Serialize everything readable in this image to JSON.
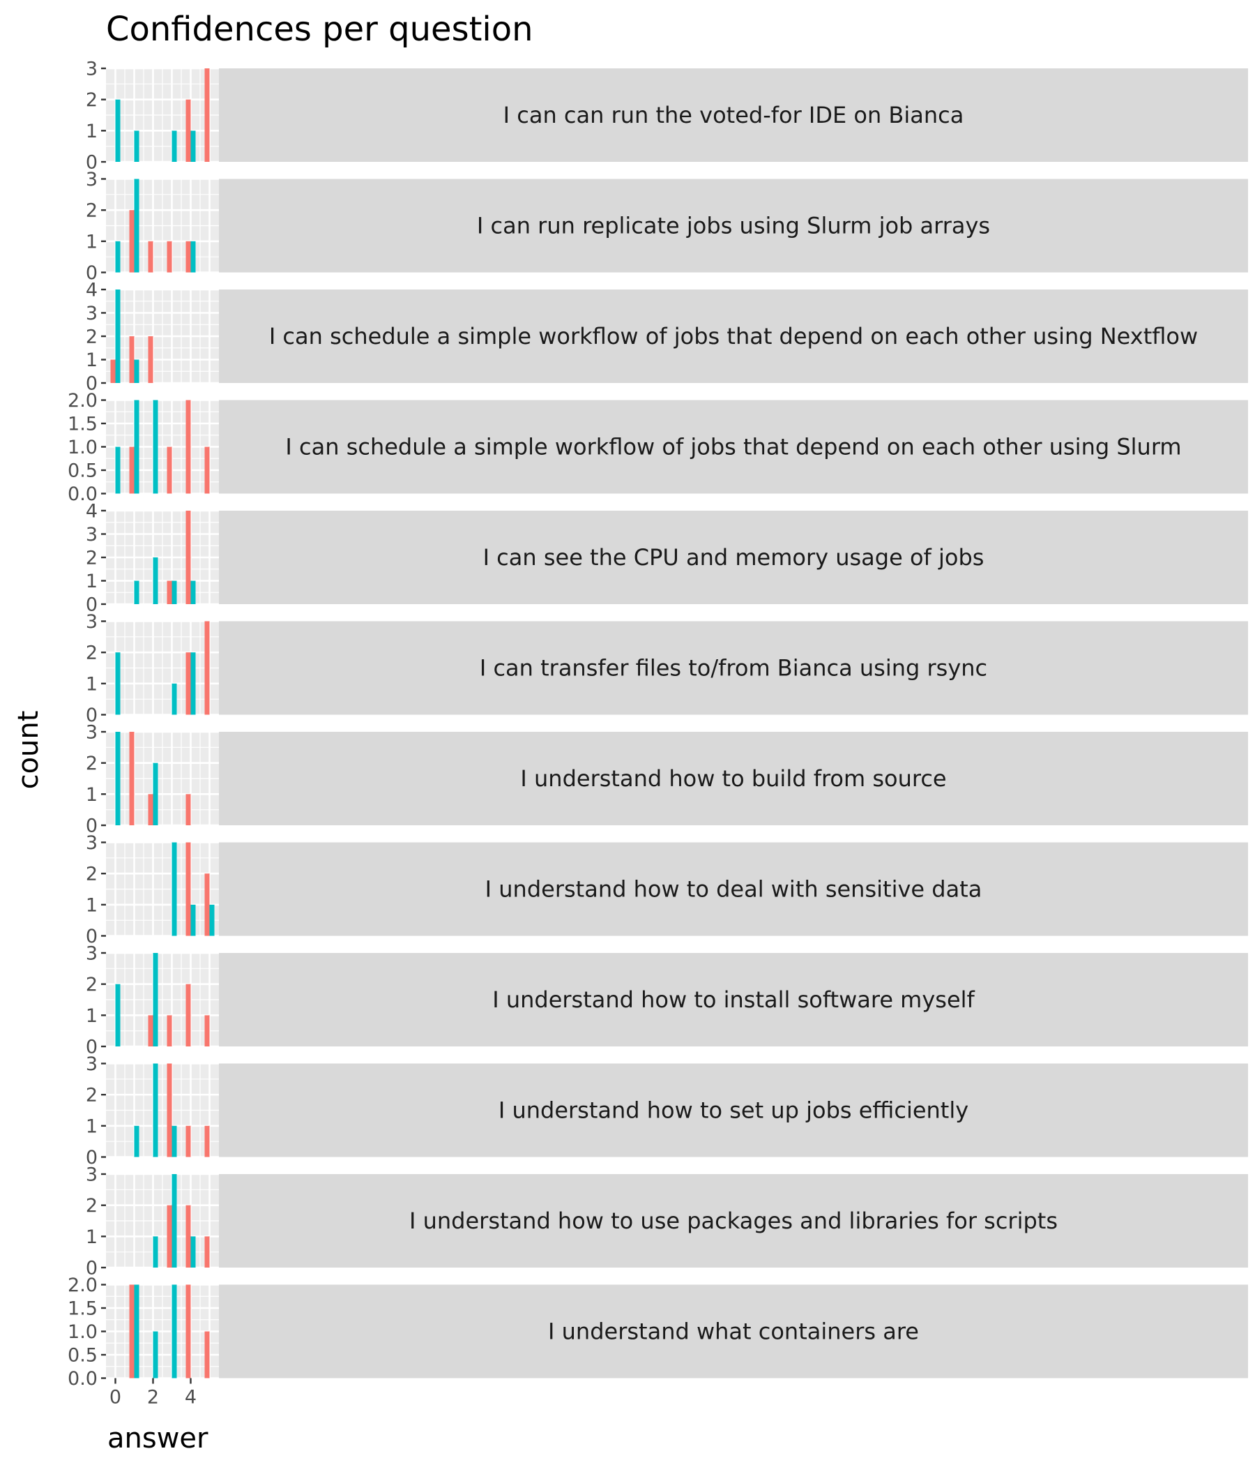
{
  "chart_data": {
    "type": "bar",
    "title": "Confidences per question",
    "xlabel": "answer",
    "ylabel": "count",
    "x_ticks": [
      0,
      2,
      4
    ],
    "xlim": [
      -0.5,
      5.5
    ],
    "grid": true,
    "legend": "none",
    "series_colors": [
      "#f8766d",
      "#00bfc4"
    ],
    "panels": [
      {
        "label": "I can can run the voted-for IDE on Bianca",
        "y_ticks": [
          "0",
          "1",
          "2",
          "3"
        ],
        "ylim": [
          0,
          3
        ],
        "series": [
          {
            "x": [
              0,
              1,
              2,
              3,
              4,
              5
            ],
            "values": [
              0,
              0,
              0,
              0,
              2,
              3
            ]
          },
          {
            "x": [
              0,
              1,
              2,
              3,
              4,
              5
            ],
            "values": [
              2,
              1,
              0,
              1,
              1,
              0
            ]
          }
        ]
      },
      {
        "label": "I can run replicate jobs using Slurm job arrays",
        "y_ticks": [
          "0",
          "1",
          "2",
          "3"
        ],
        "ylim": [
          0,
          3
        ],
        "series": [
          {
            "x": [
              0,
              1,
              2,
              3,
              4,
              5
            ],
            "values": [
              0,
              2,
              1,
              1,
              1,
              0
            ]
          },
          {
            "x": [
              0,
              1,
              2,
              3,
              4,
              5
            ],
            "values": [
              1,
              3,
              0,
              0,
              1,
              0
            ]
          }
        ]
      },
      {
        "label": "I can schedule a simple workflow of jobs that depend on each other using Nextflow",
        "y_ticks": [
          "0",
          "1",
          "2",
          "3",
          "4"
        ],
        "ylim": [
          0,
          4
        ],
        "series": [
          {
            "x": [
              0,
              1,
              2,
              3,
              4,
              5
            ],
            "values": [
              1,
              2,
              2,
              0,
              0,
              0
            ]
          },
          {
            "x": [
              0,
              1,
              2,
              3,
              4,
              5
            ],
            "values": [
              4,
              1,
              0,
              0,
              0,
              0
            ]
          }
        ]
      },
      {
        "label": "I can schedule a simple workflow of jobs that depend on each other using Slurm",
        "y_ticks": [
          "0.0",
          "0.5",
          "1.0",
          "1.5",
          "2.0"
        ],
        "ylim": [
          0,
          2
        ],
        "series": [
          {
            "x": [
              0,
              1,
              2,
              3,
              4,
              5
            ],
            "values": [
              0,
              1,
              0,
              1,
              2,
              1
            ]
          },
          {
            "x": [
              0,
              1,
              2,
              3,
              4,
              5
            ],
            "values": [
              1,
              2,
              2,
              0,
              0,
              0
            ]
          }
        ]
      },
      {
        "label": "I can see the CPU and memory usage of jobs",
        "y_ticks": [
          "0",
          "1",
          "2",
          "3",
          "4"
        ],
        "ylim": [
          0,
          4
        ],
        "series": [
          {
            "x": [
              0,
              1,
              2,
              3,
              4,
              5
            ],
            "values": [
              0,
              0,
              0,
              1,
              4,
              0
            ]
          },
          {
            "x": [
              0,
              1,
              2,
              3,
              4,
              5
            ],
            "values": [
              0,
              1,
              2,
              1,
              1,
              0
            ]
          }
        ]
      },
      {
        "label": "I can transfer files to/from Bianca using rsync",
        "y_ticks": [
          "0",
          "1",
          "2",
          "3"
        ],
        "ylim": [
          0,
          3
        ],
        "series": [
          {
            "x": [
              0,
              1,
              2,
              3,
              4,
              5
            ],
            "values": [
              0,
              0,
              0,
              0,
              2,
              3
            ]
          },
          {
            "x": [
              0,
              1,
              2,
              3,
              4,
              5
            ],
            "values": [
              2,
              0,
              0,
              1,
              2,
              0
            ]
          }
        ]
      },
      {
        "label": "I understand how to build from source",
        "y_ticks": [
          "0",
          "1",
          "2",
          "3"
        ],
        "ylim": [
          0,
          3
        ],
        "series": [
          {
            "x": [
              0,
              1,
              2,
              3,
              4,
              5
            ],
            "values": [
              0,
              3,
              1,
              0,
              1,
              0
            ]
          },
          {
            "x": [
              0,
              1,
              2,
              3,
              4,
              5
            ],
            "values": [
              3,
              0,
              2,
              0,
              0,
              0
            ]
          }
        ]
      },
      {
        "label": "I understand how to deal with sensitive data",
        "y_ticks": [
          "0",
          "1",
          "2",
          "3"
        ],
        "ylim": [
          0,
          3
        ],
        "series": [
          {
            "x": [
              0,
              1,
              2,
              3,
              4,
              5
            ],
            "values": [
              0,
              0,
              0,
              0,
              3,
              2
            ]
          },
          {
            "x": [
              0,
              1,
              2,
              3,
              4,
              5
            ],
            "values": [
              0,
              0,
              0,
              3,
              1,
              1
            ]
          }
        ]
      },
      {
        "label": "I understand how to install software myself",
        "y_ticks": [
          "0",
          "1",
          "2",
          "3"
        ],
        "ylim": [
          0,
          3
        ],
        "series": [
          {
            "x": [
              0,
              1,
              2,
              3,
              4,
              5
            ],
            "values": [
              0,
              0,
              1,
              1,
              2,
              1
            ]
          },
          {
            "x": [
              0,
              1,
              2,
              3,
              4,
              5
            ],
            "values": [
              2,
              0,
              3,
              0,
              0,
              0
            ]
          }
        ]
      },
      {
        "label": "I understand how to set up jobs efficiently",
        "y_ticks": [
          "0",
          "1",
          "2",
          "3"
        ],
        "ylim": [
          0,
          3
        ],
        "series": [
          {
            "x": [
              0,
              1,
              2,
              3,
              4,
              5
            ],
            "values": [
              0,
              0,
              0,
              3,
              1,
              1
            ]
          },
          {
            "x": [
              0,
              1,
              2,
              3,
              4,
              5
            ],
            "values": [
              0,
              1,
              3,
              1,
              0,
              0
            ]
          }
        ]
      },
      {
        "label": "I understand how to use packages and libraries for scripts",
        "y_ticks": [
          "0",
          "1",
          "2",
          "3"
        ],
        "ylim": [
          0,
          3
        ],
        "series": [
          {
            "x": [
              0,
              1,
              2,
              3,
              4,
              5
            ],
            "values": [
              0,
              0,
              0,
              2,
              2,
              1
            ]
          },
          {
            "x": [
              0,
              1,
              2,
              3,
              4,
              5
            ],
            "values": [
              0,
              0,
              1,
              3,
              1,
              0
            ]
          }
        ]
      },
      {
        "label": "I understand what containers are",
        "y_ticks": [
          "0.0",
          "0.5",
          "1.0",
          "1.5",
          "2.0"
        ],
        "ylim": [
          0,
          2
        ],
        "series": [
          {
            "x": [
              0,
              1,
              2,
              3,
              4,
              5
            ],
            "values": [
              0,
              2,
              0,
              0,
              2,
              1
            ]
          },
          {
            "x": [
              0,
              1,
              2,
              3,
              4,
              5
            ],
            "values": [
              0,
              2,
              1,
              2,
              0,
              0
            ]
          }
        ]
      }
    ]
  }
}
